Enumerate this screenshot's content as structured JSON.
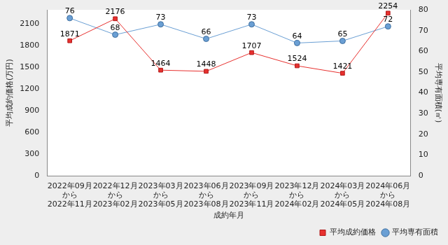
{
  "chart_data": {
    "type": "line",
    "categories": [
      [
        "2022年09月",
        "から",
        "2022年11月"
      ],
      [
        "2022年12月",
        "から",
        "2023年02月"
      ],
      [
        "2023年03月",
        "から",
        "2023年05月"
      ],
      [
        "2023年06月",
        "から",
        "2023年08月"
      ],
      [
        "2023年09月",
        "から",
        "2023年11月"
      ],
      [
        "2023年12月",
        "から",
        "2024年02月"
      ],
      [
        "2024年03月",
        "から",
        "2024年05月"
      ],
      [
        "2024年06月",
        "から",
        "2024年08月"
      ]
    ],
    "x_label": "成約年月",
    "y_label": "平均成約価格(万円)",
    "y2_label": "平均専有面積(㎡)",
    "series": [
      {
        "name": "平均成約価格",
        "color": "#e8312f",
        "marker": "square",
        "line_style": "solid",
        "values": [
          1871,
          2176,
          1464,
          1448,
          1707,
          1524,
          1421,
          2254
        ]
      },
      {
        "name": "平均専有面積",
        "color": "#6a9fd4",
        "marker": "circle",
        "line_style": "solid",
        "axis": "y2",
        "values": [
          76,
          68,
          73,
          66,
          73,
          64,
          65,
          72
        ]
      }
    ],
    "ylim": [
      0,
      2300
    ],
    "yticks": [
      0,
      300,
      600,
      900,
      1200,
      1500,
      1800,
      2100
    ],
    "y2lim": [
      0,
      80
    ],
    "y2ticks": [
      0,
      10,
      20,
      30,
      40,
      50,
      60,
      70,
      80
    ],
    "grid": false,
    "legend": "bottom-right",
    "data_labels": true
  }
}
